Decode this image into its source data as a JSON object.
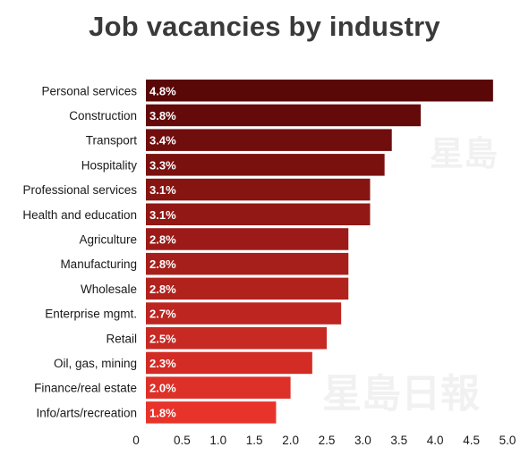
{
  "chart_data": {
    "type": "bar",
    "orientation": "horizontal",
    "title": "Job vacancies by industry",
    "categories": [
      "Personal services",
      "Construction",
      "Transport",
      "Hospitality",
      "Professional services",
      "Health and education",
      "Agriculture",
      "Manufacturing",
      "Wholesale",
      "Enterprise mgmt.",
      "Retail",
      "Oil, gas, mining",
      "Finance/real estate",
      "Info/arts/recreation"
    ],
    "values": [
      4.8,
      3.8,
      3.4,
      3.3,
      3.1,
      3.1,
      2.8,
      2.8,
      2.8,
      2.7,
      2.5,
      2.3,
      2.0,
      1.8
    ],
    "value_labels": [
      "4.8%",
      "3.8%",
      "3.4%",
      "3.3%",
      "3.1%",
      "3.1%",
      "2.8%",
      "2.8%",
      "2.8%",
      "2.7%",
      "2.5%",
      "2.3%",
      "2.0%",
      "1.8%"
    ],
    "xlim": [
      0,
      5.0
    ],
    "x_ticks": [
      "0",
      "0.5",
      "1.0",
      "1.5",
      "2.0",
      "2.5",
      "3.0",
      "3.5",
      "4.0",
      "4.5",
      "5.0"
    ],
    "grid": false,
    "colors": {
      "bar_top": "#5a0707",
      "bar_bottom": "#e8332b",
      "value_label": "#ffffff",
      "title": "#3a3a3a"
    }
  },
  "watermark": "星島日報"
}
